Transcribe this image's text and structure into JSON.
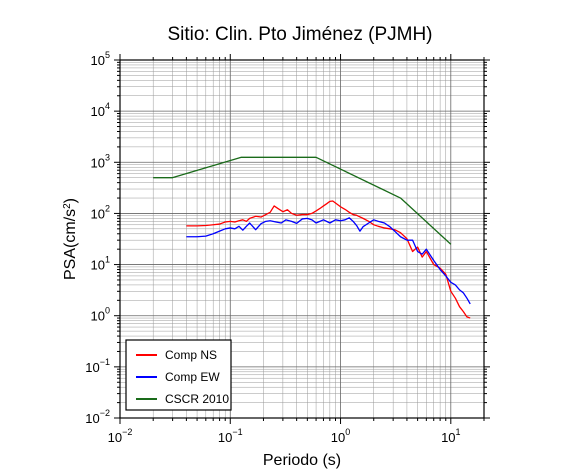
{
  "chart_data": {
    "type": "line",
    "title": "Sitio: Clin. Pto Jiménez (PJMH)",
    "xlabel": "Periodo (s)",
    "ylabel_main": "PSA(cm/s",
    "ylabel_sup": "2",
    "ylabel_close": ")",
    "xscale": "log",
    "yscale": "log",
    "xlim": [
      0.01,
      20
    ],
    "ylim": [
      0.01,
      100000
    ],
    "grid": true,
    "legend_position": "bottom-left",
    "x_ticks": [
      {
        "value": 0.01,
        "base": "10",
        "exp": "−2"
      },
      {
        "value": 0.1,
        "base": "10",
        "exp": "−1"
      },
      {
        "value": 1,
        "base": "10",
        "exp": "0"
      },
      {
        "value": 10,
        "base": "10",
        "exp": "1"
      }
    ],
    "y_ticks": [
      {
        "value": 0.01,
        "base": "10",
        "exp": "−2"
      },
      {
        "value": 0.1,
        "base": "10",
        "exp": "−1"
      },
      {
        "value": 1,
        "base": "10",
        "exp": "0"
      },
      {
        "value": 10,
        "base": "10",
        "exp": "1"
      },
      {
        "value": 100,
        "base": "10",
        "exp": "2"
      },
      {
        "value": 1000,
        "base": "10",
        "exp": "3"
      },
      {
        "value": 10000,
        "base": "10",
        "exp": "4"
      },
      {
        "value": 100000,
        "base": "10",
        "exp": "5"
      }
    ],
    "series": [
      {
        "name": "Comp NS",
        "color": "#ff0000",
        "points": [
          [
            0.04,
            57
          ],
          [
            0.05,
            57
          ],
          [
            0.06,
            58
          ],
          [
            0.07,
            60
          ],
          [
            0.08,
            62
          ],
          [
            0.09,
            68
          ],
          [
            0.1,
            70
          ],
          [
            0.11,
            68
          ],
          [
            0.12,
            72
          ],
          [
            0.13,
            75
          ],
          [
            0.14,
            70
          ],
          [
            0.15,
            80
          ],
          [
            0.17,
            88
          ],
          [
            0.19,
            85
          ],
          [
            0.21,
            95
          ],
          [
            0.23,
            105
          ],
          [
            0.25,
            140
          ],
          [
            0.27,
            125
          ],
          [
            0.3,
            108
          ],
          [
            0.33,
            118
          ],
          [
            0.36,
            100
          ],
          [
            0.4,
            92
          ],
          [
            0.45,
            95
          ],
          [
            0.5,
            95
          ],
          [
            0.55,
            100
          ],
          [
            0.6,
            112
          ],
          [
            0.65,
            125
          ],
          [
            0.7,
            140
          ],
          [
            0.75,
            155
          ],
          [
            0.8,
            172
          ],
          [
            0.85,
            175
          ],
          [
            0.9,
            160
          ],
          [
            1.0,
            135
          ],
          [
            1.1,
            120
          ],
          [
            1.2,
            105
          ],
          [
            1.3,
            95
          ],
          [
            1.4,
            92
          ],
          [
            1.6,
            80
          ],
          [
            1.8,
            70
          ],
          [
            2.0,
            60
          ],
          [
            2.2,
            56
          ],
          [
            2.5,
            52
          ],
          [
            2.8,
            50
          ],
          [
            3.1,
            48
          ],
          [
            3.5,
            42
          ],
          [
            4.0,
            32
          ],
          [
            4.5,
            18
          ],
          [
            5.0,
            22
          ],
          [
            5.5,
            14
          ],
          [
            6.0,
            18
          ],
          [
            7.0,
            10
          ],
          [
            8.0,
            8.5
          ],
          [
            9.0,
            6.5
          ],
          [
            10.0,
            3
          ],
          [
            11.0,
            2.2
          ],
          [
            12.0,
            1.5
          ],
          [
            13.0,
            1.2
          ],
          [
            14.0,
            0.95
          ],
          [
            15.0,
            0.9
          ]
        ]
      },
      {
        "name": "Comp EW",
        "color": "#0000ff",
        "points": [
          [
            0.04,
            35
          ],
          [
            0.05,
            35
          ],
          [
            0.06,
            36
          ],
          [
            0.07,
            40
          ],
          [
            0.08,
            45
          ],
          [
            0.09,
            50
          ],
          [
            0.1,
            52
          ],
          [
            0.11,
            50
          ],
          [
            0.12,
            56
          ],
          [
            0.13,
            47
          ],
          [
            0.14,
            56
          ],
          [
            0.15,
            65
          ],
          [
            0.17,
            48
          ],
          [
            0.19,
            63
          ],
          [
            0.21,
            70
          ],
          [
            0.23,
            72
          ],
          [
            0.26,
            68
          ],
          [
            0.29,
            65
          ],
          [
            0.32,
            75
          ],
          [
            0.36,
            70
          ],
          [
            0.4,
            64
          ],
          [
            0.45,
            78
          ],
          [
            0.5,
            80
          ],
          [
            0.55,
            75
          ],
          [
            0.6,
            65
          ],
          [
            0.65,
            70
          ],
          [
            0.7,
            75
          ],
          [
            0.8,
            65
          ],
          [
            0.9,
            75
          ],
          [
            1.0,
            72
          ],
          [
            1.1,
            75
          ],
          [
            1.2,
            82
          ],
          [
            1.3,
            70
          ],
          [
            1.4,
            58
          ],
          [
            1.5,
            45
          ],
          [
            1.6,
            55
          ],
          [
            1.8,
            65
          ],
          [
            2.0,
            75
          ],
          [
            2.2,
            70
          ],
          [
            2.5,
            65
          ],
          [
            2.8,
            55
          ],
          [
            3.1,
            45
          ],
          [
            3.5,
            35
          ],
          [
            4.0,
            30
          ],
          [
            4.5,
            30
          ],
          [
            5.0,
            18
          ],
          [
            5.5,
            16
          ],
          [
            6.0,
            20
          ],
          [
            7.0,
            12
          ],
          [
            8.0,
            8
          ],
          [
            9.0,
            6
          ],
          [
            10.0,
            4.5
          ],
          [
            11.0,
            4
          ],
          [
            12.0,
            3.2
          ],
          [
            13.0,
            2.8
          ],
          [
            14.0,
            2.2
          ],
          [
            15.0,
            1.7
          ]
        ]
      },
      {
        "name": "CSCR 2010",
        "color": "#1a6b1a",
        "points": [
          [
            0.02,
            500
          ],
          [
            0.03,
            500
          ],
          [
            0.125,
            1250
          ],
          [
            0.6,
            1250
          ],
          [
            3.5,
            200
          ],
          [
            10.0,
            25
          ]
        ]
      }
    ]
  }
}
